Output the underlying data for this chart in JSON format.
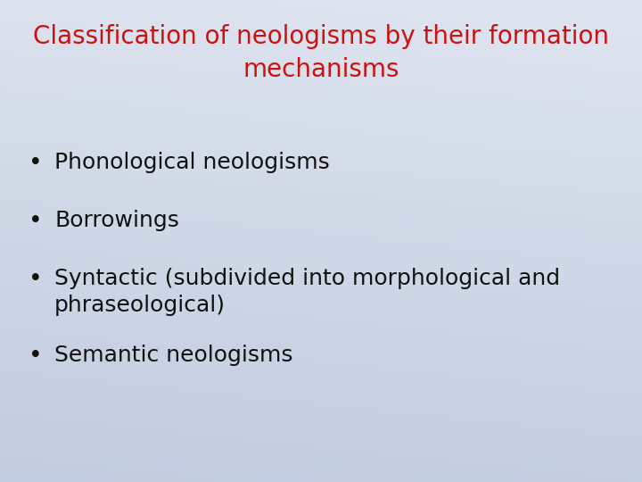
{
  "title_line1": "Classification of neologisms by their formation",
  "title_line2": "mechanisms",
  "title_color": "#cc1111",
  "title_fontsize": 20,
  "title_fontweight": "normal",
  "bullet_items": [
    "Phonological neologisms",
    "Borrowings",
    "Syntactic (subdivided into morphological and\nphraseological)",
    "Semantic neologisms"
  ],
  "bullet_color": "#111111",
  "bullet_fontsize": 18,
  "bullet_symbol": "•",
  "bg_color_top_left": "#dde2ec",
  "bg_color_top_right": "#e8ecf4",
  "bg_color_bottom_left": "#c5cedd",
  "bg_color_bottom_right": "#cdd6e6",
  "font_family": "DejaVu Sans"
}
